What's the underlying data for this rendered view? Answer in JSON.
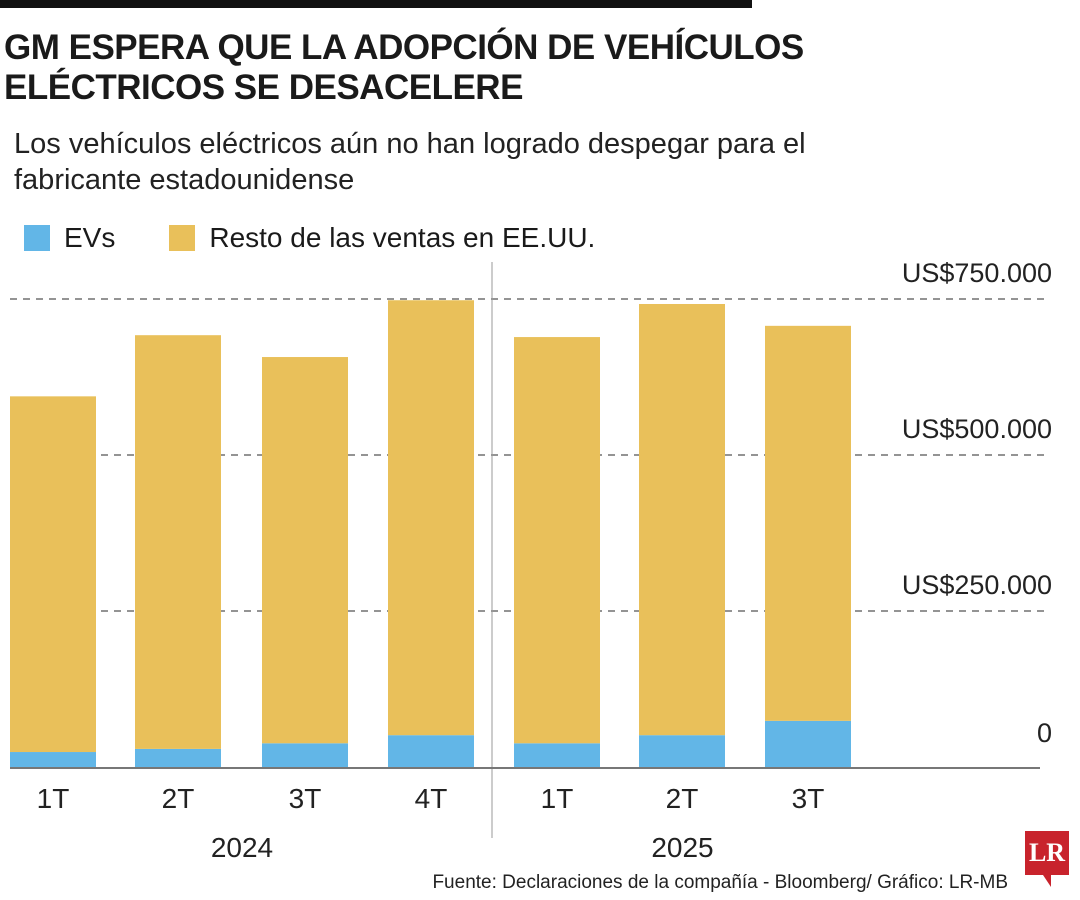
{
  "title": "GM ESPERA QUE LA ADOPCIÓN DE VEHÍCULOS ELÉCTRICOS SE DESACELERE",
  "subtitle": "Los vehículos eléctricos aún no han logrado despegar para el fabricante estadounidense",
  "source": "Fuente: Declaraciones de la compañía - Bloomberg/ Gráfico: LR-MB",
  "logo_text": "LR",
  "colors": {
    "evs": "#62b6e7",
    "rest": "#e9c05a",
    "logo": "#c8232c"
  },
  "chart_data": {
    "type": "bar",
    "stacked": true,
    "categories": [
      "1T",
      "2T",
      "3T",
      "4T",
      "1T",
      "2T",
      "3T"
    ],
    "groups": [
      {
        "label": "2024",
        "categories": 4
      },
      {
        "label": "2025",
        "categories": 3
      }
    ],
    "series": [
      {
        "name": "EVs",
        "values": [
          24000,
          29000,
          38000,
          51000,
          38000,
          51000,
          74000
        ]
      },
      {
        "name": "Resto de las ventas en EE.UU.",
        "values": [
          570000,
          663000,
          619000,
          697000,
          651000,
          691000,
          633000
        ]
      }
    ],
    "yticks": [
      {
        "value": 0,
        "label": "0"
      },
      {
        "value": 250000,
        "label": "US$250.000"
      },
      {
        "value": 500000,
        "label": "US$500.000"
      },
      {
        "value": 750000,
        "label": "US$750.000"
      }
    ],
    "ylim": [
      0,
      750000
    ],
    "grid": "dashed horizontal",
    "legend": "top-left"
  }
}
